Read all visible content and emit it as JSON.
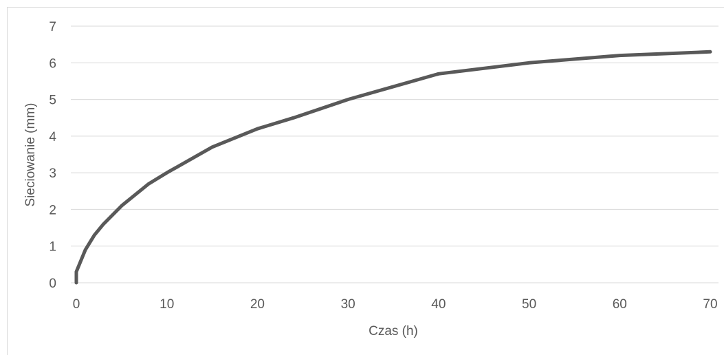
{
  "chart_data": {
    "type": "line",
    "title": "",
    "xlabel": "Czas (h)",
    "ylabel": "Sieciowanie (mm)",
    "xlim": [
      0,
      70
    ],
    "ylim": [
      0,
      7
    ],
    "x_ticks": [
      0,
      10,
      20,
      30,
      40,
      50,
      60,
      70
    ],
    "y_ticks": [
      0,
      1,
      2,
      3,
      4,
      5,
      6,
      7
    ],
    "grid": "horizontal",
    "legend": "none",
    "series": [
      {
        "color": "#595959",
        "x": [
          0,
          0,
          1,
          2,
          3,
          5,
          6,
          8,
          10,
          15,
          20,
          24,
          30,
          40,
          50,
          60,
          70
        ],
        "y": [
          0,
          0.3,
          0.9,
          1.3,
          1.6,
          2.1,
          2.3,
          2.7,
          3.0,
          3.7,
          4.2,
          4.5,
          5.0,
          5.7,
          6.0,
          6.2,
          6.3
        ]
      }
    ]
  }
}
